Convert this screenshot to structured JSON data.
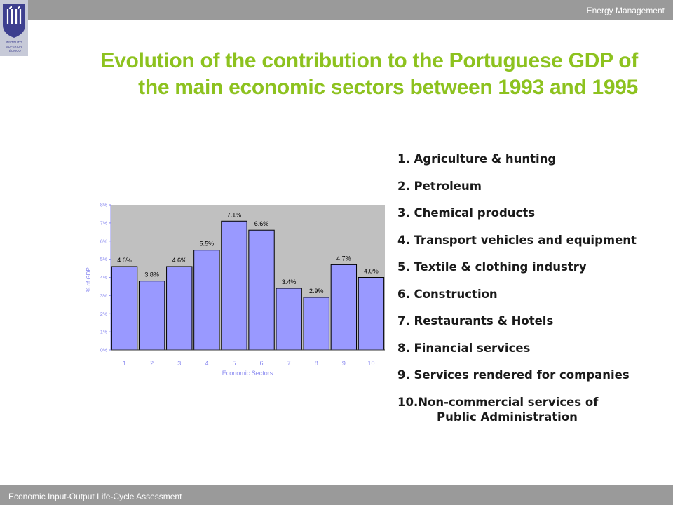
{
  "header": {
    "text": "Energy Management"
  },
  "logo": {
    "text_lines": [
      "INSTITUTO",
      "SUPERIOR",
      "TÉCNICO"
    ]
  },
  "title": "Evolution of the contribution to the Portuguese GDP of the main economic sectors between 1993 and 1995",
  "legend": {
    "items": [
      "1. Agriculture & hunting",
      "2. Petroleum",
      "3. Chemical products",
      "4. Transport vehicles and equipment",
      "5. Textile & clothing industry",
      "6. Construction",
      "7. Restaurants & Hotels",
      "8. Financial services",
      "9. Services rendered for companies",
      "10.Non-commercial services of"
    ],
    "item_10_line2": "Public Administration"
  },
  "chart_data": {
    "type": "bar",
    "categories": [
      "1",
      "2",
      "3",
      "4",
      "5",
      "6",
      "7",
      "8",
      "9",
      "10"
    ],
    "values": [
      4.6,
      3.8,
      4.6,
      5.5,
      7.1,
      6.6,
      3.4,
      2.9,
      4.7,
      4.0
    ],
    "data_labels": [
      "4.6%",
      "3.8%",
      "4.6%",
      "5.5%",
      "7.1%",
      "6.6%",
      "3.4%",
      "2.9%",
      "4.7%",
      "4.0%"
    ],
    "xlabel": "Economic Sectors",
    "ylabel": "% of GDP",
    "ylim": [
      0,
      8
    ],
    "yticks": [
      "0%",
      "1%",
      "2%",
      "3%",
      "4%",
      "5%",
      "6%",
      "7%",
      "8%"
    ],
    "bar_color": "#9999ff",
    "plot_area_color": "#c0c0c0",
    "tick_color": "#8a8af0",
    "grid": false
  },
  "footer": {
    "text": "Economic Input-Output Life-Cycle Assessment"
  }
}
